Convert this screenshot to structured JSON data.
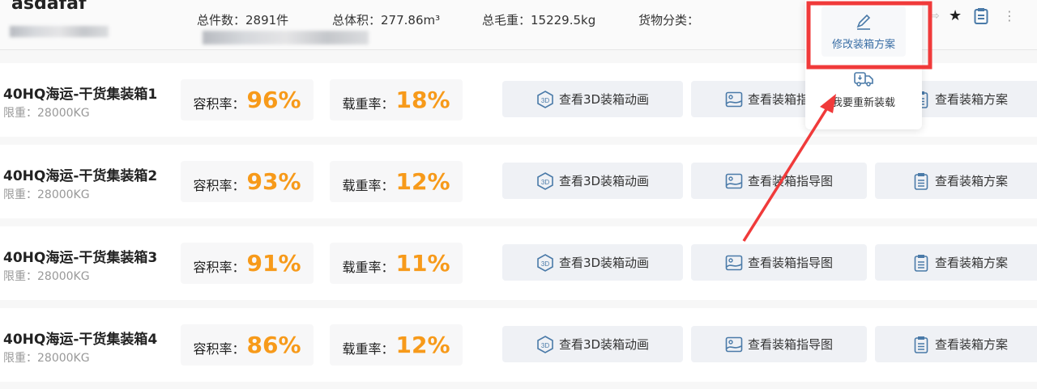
{
  "header": {
    "title": "asdafaf",
    "total_count": "总件数：2891件",
    "total_volume": "总体积：277.86m³",
    "total_weight": "总毛重：15229.5kg",
    "category": "货物分类："
  },
  "menu": {
    "edit": "修改装箱方案",
    "reload": "我要重新装载"
  },
  "rows": [
    {
      "name": "40HQ海运-干货集装箱1",
      "limit": "限重：28000KG",
      "volume_label": "容积率：",
      "volume": "96%",
      "weight_label": "载重率：",
      "weight": "18%"
    },
    {
      "name": "40HQ海运-干货集装箱2",
      "limit": "限重：28000KG",
      "volume_label": "容积率：",
      "volume": "93%",
      "weight_label": "载重率：",
      "weight": "12%"
    },
    {
      "name": "40HQ海运-干货集装箱3",
      "limit": "限重：28000KG",
      "volume_label": "容积率：",
      "volume": "91%",
      "weight_label": "载重率：",
      "weight": "11%"
    },
    {
      "name": "40HQ海运-干货集装箱4",
      "limit": "限重：28000KG",
      "volume_label": "容积率：",
      "volume": "86%",
      "weight_label": "载重率：",
      "weight": "12%"
    }
  ],
  "buttons": {
    "anim": "查看3D装箱动画",
    "guide": "查看装箱指导图",
    "plan": "查看装箱方案"
  },
  "colors": {
    "accent": "#f79a1a",
    "icon": "#4a7aa8",
    "annotation": "#f03a3a"
  }
}
